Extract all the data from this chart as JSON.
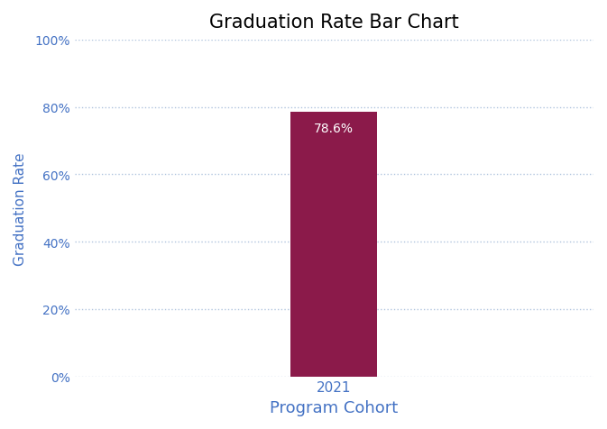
{
  "title": "Graduation Rate Bar Chart",
  "xlabel": "Program Cohort",
  "ylabel": "Graduation Rate",
  "categories": [
    "2021"
  ],
  "values": [
    78.6
  ],
  "bar_color": "#8B1A4A",
  "label_color": "#ffffff",
  "label_fontsize": 10,
  "title_fontsize": 15,
  "xlabel_fontsize": 13,
  "ylabel_fontsize": 11,
  "ylabel_color": "#4472c4",
  "xlabel_color": "#4472c4",
  "tick_color": "#4472c4",
  "ylim": [
    0,
    100
  ],
  "yticks": [
    0,
    20,
    40,
    60,
    80,
    100
  ],
  "grid_color": "#b0c4de",
  "background_color": "#ffffff",
  "bar_width": 0.25,
  "xlim": [
    -0.75,
    0.75
  ]
}
